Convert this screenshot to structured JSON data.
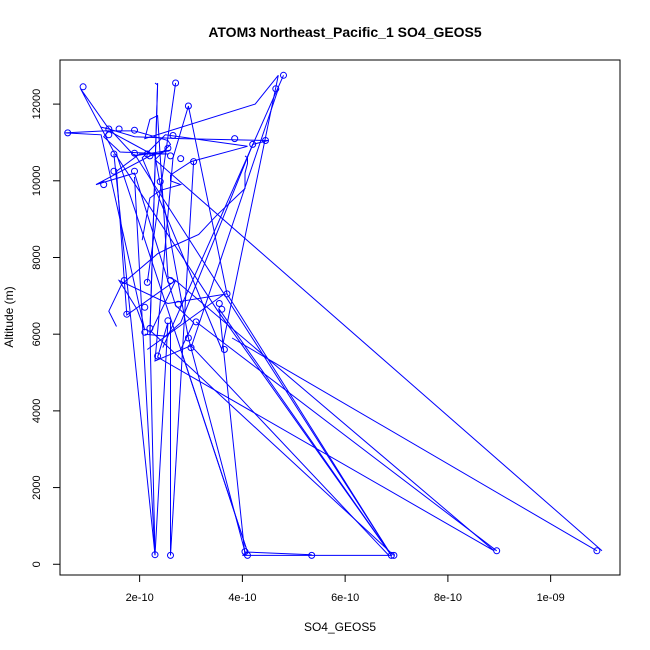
{
  "chart_data": {
    "type": "line",
    "title": "ATOM3 Northeast_Pacific_1 SO4_GEOS5",
    "xlabel": "SO4_GEOS5",
    "ylabel": "Altitude (m)",
    "xlim": [
      4.5e-11,
      1.135e-09
    ],
    "ylim": [
      -280,
      13150
    ],
    "x_ticks": [
      {
        "value": 2e-10,
        "label": "2e-10"
      },
      {
        "value": 4e-10,
        "label": "4e-10"
      },
      {
        "value": 6e-10,
        "label": "6e-10"
      },
      {
        "value": 8e-10,
        "label": "8e-10"
      },
      {
        "value": 1e-09,
        "label": "1e-09"
      }
    ],
    "y_ticks": [
      {
        "value": 0,
        "label": "0"
      },
      {
        "value": 2000,
        "label": "2000"
      },
      {
        "value": 4000,
        "label": "4000"
      },
      {
        "value": 6000,
        "label": "6000"
      },
      {
        "value": 8000,
        "label": "8000"
      },
      {
        "value": 10000,
        "label": "10000"
      },
      {
        "value": 12000,
        "label": "12000"
      }
    ],
    "color": "#0000ff",
    "series": [
      {
        "x": [
          4e-10,
          6.9e-10,
          3.5e-10,
          1.5e-10,
          8.5e-11,
          1.35e-10,
          1.9e-10,
          2.6e-10,
          2.2e-10,
          1.15e-10,
          1.9e-10,
          2.7e-10,
          3.05e-10,
          2.8e-10,
          4.1e-10,
          4e-10
        ],
        "y": [
          230,
          230,
          6650,
          10750,
          12400,
          11450,
          10650,
          10800,
          10650,
          9900,
          10200,
          6750,
          6300,
          5600,
          320,
          230
        ]
      },
      {
        "x": [
          5.35e-10,
          4.05e-10,
          2.95e-10,
          2.3e-10,
          1.4e-10,
          1.3e-10,
          1.62e-10,
          2.55e-10,
          2e-10,
          1.55e-10,
          1.75e-10,
          2.7e-10,
          8.9e-10,
          2.35e-10,
          2.55e-10,
          2.3e-10,
          1.9e-10
        ],
        "y": [
          250,
          320,
          5900,
          10650,
          11300,
          11150,
          10750,
          10700,
          10700,
          10250,
          6500,
          7400,
          350,
          5400,
          6300,
          230,
          10100
        ]
      },
      {
        "x": [
          6.85e-10,
          3e-10,
          2.3e-10,
          2.65e-10,
          2.95e-10,
          3.7e-10,
          2.55e-10,
          1.6e-10,
          1.95e-10,
          2.1e-10,
          1.25e-10,
          5.5e-11,
          1.32e-10,
          1.9e-10,
          2.3e-10,
          2.55e-10,
          2.6e-10,
          2.3e-10,
          1.1e-09
        ],
        "y": [
          230,
          5700,
          5300,
          10600,
          11950,
          7050,
          6800,
          7400,
          6650,
          6100,
          11200,
          11250,
          11300,
          11300,
          11150,
          11050,
          10950,
          10550,
          350
        ]
      },
      {
        "x": [
          2.3e-10,
          2.35e-10,
          2.2e-10,
          2.7e-10,
          2.55e-10,
          2.35e-10,
          2.2e-10,
          2.1e-10,
          4.25e-10,
          4.7e-10,
          3.6e-10,
          2.05e-10,
          2.5e-10,
          4.1e-10,
          3e-10,
          2.6e-10,
          2.6e-10,
          2.8e-10,
          2.4e-10,
          2.2e-10,
          2.05e-10
        ],
        "y": [
          12550,
          12500,
          6000,
          7400,
          7500,
          11700,
          11600,
          11100,
          12000,
          12750,
          5600,
          10600,
          11200,
          10900,
          10500,
          10150,
          10000,
          9900,
          9750,
          9550,
          8450
        ]
      },
      {
        "x": [
          2.1e-10,
          2.5e-10,
          2.8e-10,
          4.2e-10,
          4.5e-10,
          2.8e-10,
          1.9e-10,
          1.4e-10,
          1.25e-10
        ],
        "y": [
          6000,
          5950,
          6300,
          10950,
          11050,
          11100,
          11150,
          11350,
          11400
        ]
      },
      {
        "x": [
          1.55e-10,
          1.4e-10,
          1.65e-10,
          2.35e-10,
          2.65e-10,
          3.15e-10,
          3.5e-10,
          4.05e-10,
          4.05e-10,
          4.1e-10,
          4.1e-10,
          4.1e-10,
          4.05e-10
        ],
        "y": [
          6200,
          6600,
          7300,
          8100,
          8300,
          8600,
          9100,
          9800,
          10200,
          10450,
          10550,
          10600,
          10650
        ]
      }
    ],
    "segments": [
      {
        "x": [
          6.9e-10,
          3.7e-10
        ],
        "y": [
          230,
          7050
        ]
      },
      {
        "x": [
          6.95e-10,
          2.2e-10
        ],
        "y": [
          230,
          6100
        ]
      },
      {
        "x": [
          6.9e-10,
          1.9e-10
        ],
        "y": [
          230,
          10700
        ]
      },
      {
        "x": [
          6.9e-10,
          3.55e-10
        ],
        "y": [
          230,
          6650
        ]
      },
      {
        "x": [
          8.95e-10,
          3.1e-10
        ],
        "y": [
          350,
          6320
        ]
      },
      {
        "x": [
          1.09e-09,
          3.8e-10
        ],
        "y": [
          350,
          5900
        ]
      },
      {
        "x": [
          4.05e-10,
          3.55e-10
        ],
        "y": [
          230,
          6650
        ]
      },
      {
        "x": [
          4.1e-10,
          1.55e-10
        ],
        "y": [
          320,
          10700
        ]
      },
      {
        "x": [
          2.6e-10,
          2.6e-10
        ],
        "y": [
          230,
          6350
        ]
      },
      {
        "x": [
          2.3e-10,
          1.5e-10
        ],
        "y": [
          250,
          10700
        ]
      },
      {
        "x": [
          2.3e-10,
          2.2e-10
        ],
        "y": [
          250,
          6150
        ]
      },
      {
        "x": [
          2.6e-10,
          3.05e-10
        ],
        "y": [
          230,
          10500
        ]
      },
      {
        "x": [
          2.2e-10,
          2.35e-10
        ],
        "y": [
          6000,
          12550
        ]
      },
      {
        "x": [
          2.15e-10,
          2.7e-10
        ],
        "y": [
          7350,
          12550
        ]
      },
      {
        "x": [
          3e-10,
          4.7e-10
        ],
        "y": [
          5650,
          12400
        ]
      },
      {
        "x": [
          2.45e-10,
          4.8e-10
        ],
        "y": [
          5650,
          12750
        ]
      },
      {
        "x": [
          2.15e-10,
          3.65e-10
        ],
        "y": [
          5600,
          7050
        ]
      }
    ],
    "points": [
      {
        "x": 9e-11,
        "y": 12450
      },
      {
        "x": 2.7e-10,
        "y": 12550
      },
      {
        "x": 4.8e-10,
        "y": 12750
      },
      {
        "x": 4.65e-10,
        "y": 12400
      },
      {
        "x": 2.95e-10,
        "y": 11950
      },
      {
        "x": 6e-11,
        "y": 11250
      },
      {
        "x": 1.4e-10,
        "y": 11350
      },
      {
        "x": 1.6e-10,
        "y": 11350
      },
      {
        "x": 1.9e-10,
        "y": 11320
      },
      {
        "x": 1.4e-10,
        "y": 11200
      },
      {
        "x": 2.65e-10,
        "y": 11180
      },
      {
        "x": 3.85e-10,
        "y": 11100
      },
      {
        "x": 4.45e-10,
        "y": 11050
      },
      {
        "x": 4.2e-10,
        "y": 10950
      },
      {
        "x": 2.55e-10,
        "y": 10850
      },
      {
        "x": 1.5e-10,
        "y": 10700
      },
      {
        "x": 1.9e-10,
        "y": 10720
      },
      {
        "x": 2.15e-10,
        "y": 10700
      },
      {
        "x": 2.2e-10,
        "y": 10650
      },
      {
        "x": 2.6e-10,
        "y": 10650
      },
      {
        "x": 2.8e-10,
        "y": 10580
      },
      {
        "x": 3.05e-10,
        "y": 10500
      },
      {
        "x": 1.5e-10,
        "y": 10250
      },
      {
        "x": 1.9e-10,
        "y": 10250
      },
      {
        "x": 2.4e-10,
        "y": 9980
      },
      {
        "x": 1.3e-10,
        "y": 9900
      },
      {
        "x": 1.7e-10,
        "y": 7400
      },
      {
        "x": 2.6e-10,
        "y": 7400
      },
      {
        "x": 2.15e-10,
        "y": 7350
      },
      {
        "x": 3.7e-10,
        "y": 7050
      },
      {
        "x": 3.55e-10,
        "y": 6800
      },
      {
        "x": 2.75e-10,
        "y": 6780
      },
      {
        "x": 2.1e-10,
        "y": 6700
      },
      {
        "x": 3.6e-10,
        "y": 6650
      },
      {
        "x": 1.75e-10,
        "y": 6520
      },
      {
        "x": 2.55e-10,
        "y": 6350
      },
      {
        "x": 3.1e-10,
        "y": 6320
      },
      {
        "x": 2.2e-10,
        "y": 6150
      },
      {
        "x": 2.1e-10,
        "y": 6050
      },
      {
        "x": 2.95e-10,
        "y": 5900
      },
      {
        "x": 3e-10,
        "y": 5650
      },
      {
        "x": 3.65e-10,
        "y": 5600
      },
      {
        "x": 2.35e-10,
        "y": 5430
      },
      {
        "x": 2.3e-10,
        "y": 250
      },
      {
        "x": 2.6e-10,
        "y": 230
      },
      {
        "x": 4.05e-10,
        "y": 330
      },
      {
        "x": 4.1e-10,
        "y": 230
      },
      {
        "x": 5.35e-10,
        "y": 230
      },
      {
        "x": 6.9e-10,
        "y": 230
      },
      {
        "x": 6.95e-10,
        "y": 230
      },
      {
        "x": 8.95e-10,
        "y": 350
      },
      {
        "x": 1.09e-09,
        "y": 350
      }
    ]
  }
}
